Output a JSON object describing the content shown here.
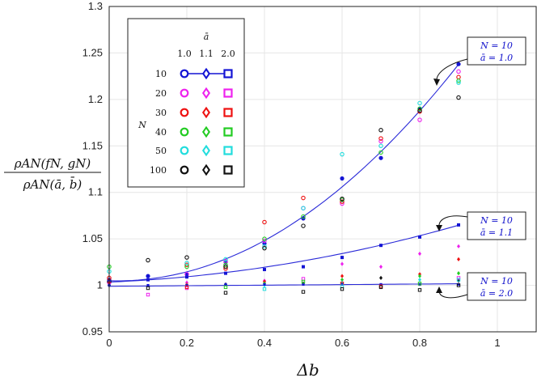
{
  "chart_data": {
    "type": "scatter",
    "title": "",
    "xlabel": "Δb",
    "ylabel_num": "ρAN(fN, gN)",
    "ylabel_den": "ρAN(ā, b̄)",
    "xlim": [
      0,
      1.1
    ],
    "ylim": [
      0.95,
      1.3
    ],
    "xticks": [
      "0",
      "0.2",
      "0.4",
      "0.6",
      "0.8",
      "1"
    ],
    "xtick_values": [
      0,
      0.2,
      0.4,
      0.6,
      0.8,
      1.0
    ],
    "yticks": [
      "0.95",
      "1",
      "1.05",
      "1.1",
      "1.15",
      "1.2",
      "1.25",
      "1.3"
    ],
    "ytick_values": [
      0.95,
      1.0,
      1.05,
      1.1,
      1.15,
      1.2,
      1.25,
      1.3
    ],
    "grid": true,
    "legend": {
      "header": "ā",
      "columns": [
        "1.0",
        "1.1",
        "2.0"
      ],
      "row_title": "N",
      "rows": [
        "10",
        "20",
        "30",
        "40",
        "50",
        "100"
      ],
      "row_colors": [
        "#1414d4",
        "#ee22ee",
        "#ee1111",
        "#22cc22",
        "#22dddd",
        "#111111"
      ],
      "placement": "top-left"
    },
    "marker_colors": {
      "10": "#1414d4",
      "20": "#ee22ee",
      "30": "#ee1111",
      "40": "#22cc22",
      "50": "#22dddd",
      "100": "#111111"
    },
    "fit_curves": [
      {
        "label_n": "N = 10",
        "label_a": "ā = 1.0",
        "coef": [
          1.005,
          -0.0126,
          0.3013
        ],
        "x_range": [
          0,
          0.9
        ]
      },
      {
        "label_n": "N = 10",
        "label_a": "ā = 1.1",
        "coef": [
          1.0035,
          0.0175,
          0.0561
        ],
        "x_range": [
          0,
          0.9
        ]
      },
      {
        "label_n": "N = 10",
        "label_a": "ā = 2.0",
        "coef": [
          0.999,
          0.003,
          0.0
        ],
        "x_range": [
          0,
          0.9
        ]
      }
    ],
    "series": [
      {
        "name": "N=10, ā=1.0",
        "N": "10",
        "a": "1.0",
        "x": [
          0,
          0.1,
          0.2,
          0.3,
          0.4,
          0.5,
          0.6,
          0.7,
          0.8,
          0.9
        ],
        "y": [
          1.006,
          1.01,
          1.012,
          1.025,
          1.045,
          1.072,
          1.115,
          1.137,
          1.19,
          1.238
        ]
      },
      {
        "name": "N=20, ā=1.0",
        "N": "20",
        "a": "1.0",
        "x": [
          0,
          0.2,
          0.3,
          0.4,
          0.5,
          0.6,
          0.7,
          0.8,
          0.9
        ],
        "y": [
          1.003,
          1.012,
          1.026,
          1.048,
          1.083,
          1.088,
          1.155,
          1.178,
          1.23
        ]
      },
      {
        "name": "N=30, ā=1.0",
        "N": "30",
        "a": "1.0",
        "x": [
          0,
          0.2,
          0.3,
          0.4,
          0.5,
          0.6,
          0.7,
          0.8,
          0.9
        ],
        "y": [
          1.008,
          1.022,
          1.018,
          1.068,
          1.094,
          1.09,
          1.158,
          1.187,
          1.224
        ]
      },
      {
        "name": "N=40, ā=1.0",
        "N": "40",
        "a": "1.0",
        "x": [
          0,
          0.2,
          0.3,
          0.4,
          0.5,
          0.6,
          0.7,
          0.8,
          0.9
        ],
        "y": [
          1.02,
          1.02,
          1.022,
          1.05,
          1.074,
          1.092,
          1.143,
          1.19,
          1.22
        ]
      },
      {
        "name": "N=50, ā=1.0",
        "N": "50",
        "a": "1.0",
        "x": [
          0,
          0.2,
          0.3,
          0.4,
          0.5,
          0.6,
          0.7,
          0.8,
          0.9
        ],
        "y": [
          1.015,
          1.024,
          1.028,
          1.042,
          1.083,
          1.141,
          1.15,
          1.196,
          1.218
        ]
      },
      {
        "name": "N=100, ā=1.0",
        "N": "100",
        "a": "1.0",
        "x": [
          0,
          0.1,
          0.2,
          0.3,
          0.4,
          0.5,
          0.6,
          0.7,
          0.8,
          0.9
        ],
        "y": [
          1.004,
          1.027,
          1.03,
          1.02,
          1.04,
          1.064,
          1.093,
          1.167,
          1.188,
          1.202
        ]
      },
      {
        "name": "N=10, ā=1.1",
        "N": "10",
        "a": "1.1",
        "x": [
          0,
          0.1,
          0.2,
          0.3,
          0.4,
          0.5,
          0.6,
          0.7,
          0.8,
          0.9
        ],
        "y": [
          1.004,
          1.006,
          1.009,
          1.013,
          1.017,
          1.02,
          1.03,
          1.043,
          1.052,
          1.065
        ]
      },
      {
        "name": "N=20, ā=1.1",
        "N": "20",
        "a": "1.1",
        "x": [
          0,
          0.2,
          0.4,
          0.6,
          0.7,
          0.8,
          0.9
        ],
        "y": [
          1.002,
          1.003,
          1.005,
          1.023,
          1.02,
          1.034,
          1.042
        ]
      },
      {
        "name": "N=30, ā=1.1",
        "N": "30",
        "a": "1.1",
        "x": [
          0,
          0.2,
          0.4,
          0.6,
          0.8,
          0.9
        ],
        "y": [
          1.003,
          1.001,
          1.004,
          1.01,
          1.012,
          1.028
        ]
      },
      {
        "name": "N=40, ā=1.1",
        "N": "40",
        "a": "1.1",
        "x": [
          0,
          0.4,
          0.6,
          0.8,
          0.9
        ],
        "y": [
          1.0,
          1.002,
          1.006,
          1.01,
          1.013
        ]
      },
      {
        "name": "N=50, ā=1.1",
        "N": "50",
        "a": "1.1",
        "x": [
          0.2,
          0.4,
          0.6,
          0.8
        ],
        "y": [
          1.0,
          1.0,
          1.003,
          1.006
        ]
      },
      {
        "name": "N=100, ā=1.1",
        "N": "100",
        "a": "1.1",
        "x": [
          0,
          0.3,
          0.5,
          0.7,
          0.9
        ],
        "y": [
          1.0,
          1.001,
          1.002,
          1.008,
          1.005
        ]
      },
      {
        "name": "N=10, ā=2.0",
        "N": "10",
        "a": "2.0",
        "x": [
          0,
          0.1,
          0.2,
          0.3,
          0.4,
          0.5,
          0.6,
          0.7,
          0.8,
          0.9
        ],
        "y": [
          1.0,
          1.0,
          1.0,
          1.001,
          1.001,
          1.001,
          1.001,
          1.001,
          1.001,
          1.001
        ]
      },
      {
        "name": "N=20, ā=2.0",
        "N": "20",
        "a": "2.0",
        "x": [
          0.1,
          0.2,
          0.5,
          0.9
        ],
        "y": [
          0.99,
          0.997,
          1.007,
          1.008
        ]
      },
      {
        "name": "N=30, ā=2.0",
        "N": "30",
        "a": "2.0",
        "x": [
          0.2,
          0.6,
          0.7
        ],
        "y": [
          0.998,
          1.002,
          0.999
        ]
      },
      {
        "name": "N=40, ā=2.0",
        "N": "40",
        "a": "2.0",
        "x": [
          0.3,
          0.5,
          0.8
        ],
        "y": [
          0.998,
          1.004,
          1.002
        ]
      },
      {
        "name": "N=50, ā=2.0",
        "N": "50",
        "a": "2.0",
        "x": [
          0.4,
          0.6,
          0.9
        ],
        "y": [
          0.996,
          0.999,
          1.006
        ]
      },
      {
        "name": "N=100, ā=2.0",
        "N": "100",
        "a": "2.0",
        "x": [
          0.1,
          0.3,
          0.5,
          0.6,
          0.7,
          0.8,
          0.9
        ],
        "y": [
          0.997,
          0.992,
          0.993,
          0.996,
          0.998,
          0.995,
          1.0
        ]
      }
    ]
  }
}
